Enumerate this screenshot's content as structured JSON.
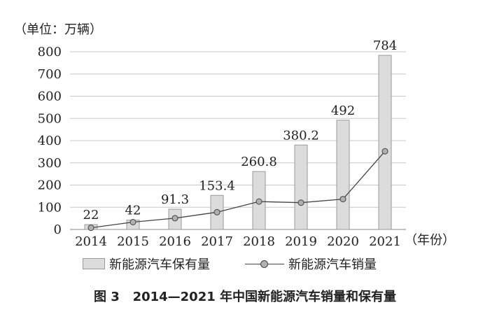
{
  "chart_data": {
    "type": "bar",
    "unit_label": "（单位：万辆）",
    "x_unit_label": "（年份）",
    "categories": [
      "2014",
      "2015",
      "2016",
      "2017",
      "2018",
      "2019",
      "2020",
      "2021"
    ],
    "series": [
      {
        "name": "新能源汽车保有量",
        "type": "bar",
        "values": [
          22,
          42,
          91.3,
          153.4,
          260.8,
          380.2,
          492,
          784
        ],
        "labels": [
          "22",
          "42",
          "91.3",
          "153.4",
          "260.8",
          "380.2",
          "492",
          "784"
        ]
      },
      {
        "name": "新能源汽车销量",
        "type": "line",
        "values": [
          7.5,
          33.1,
          50.7,
          77.7,
          125.6,
          120.6,
          136.7,
          352.1
        ]
      }
    ],
    "y_ticks": [
      0,
      100,
      200,
      300,
      400,
      500,
      600,
      700,
      800
    ],
    "ylim": [
      0,
      800
    ],
    "grid": true,
    "legend_position": "bottom"
  },
  "caption": {
    "figure_no": "图 3",
    "text": "2014—2021 年中国新能源汽车销量和保有量"
  },
  "colors": {
    "bar_fill": "#dcdcdc",
    "bar_stroke": "#9a9a9a",
    "line": "#444444",
    "marker": "#b0b0b0",
    "grid": "#c8c8c8"
  }
}
